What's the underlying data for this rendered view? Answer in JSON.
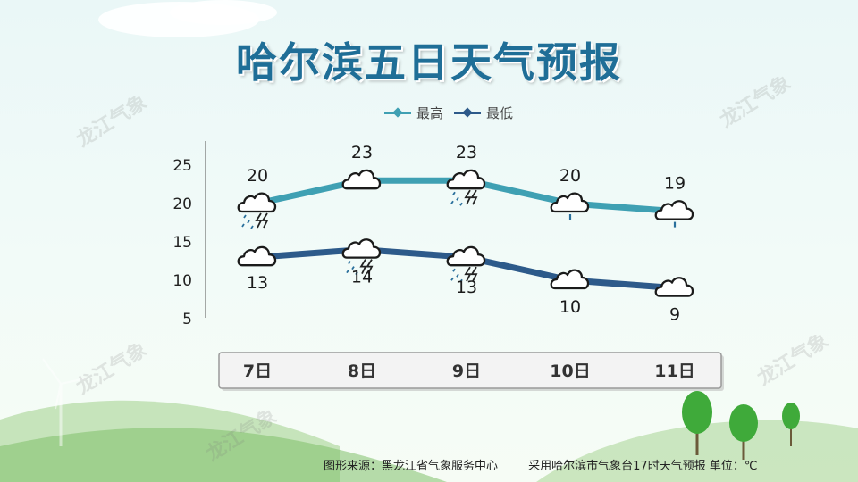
{
  "title": "哈尔滨五日天气预报",
  "watermark": "龙江气象",
  "footer": {
    "source": "图形来源：黑龙江省气象服务中心",
    "note": "采用哈尔滨市气象台17时天气预报 单位：℃"
  },
  "colors": {
    "title": "#1f6e97",
    "high_series": "#3fa0b3",
    "low_series": "#2d5a8a"
  },
  "chart_data": {
    "type": "line",
    "title": "",
    "xlabel": "",
    "ylabel": "",
    "categories": [
      "7日",
      "8日",
      "9日",
      "10日",
      "11日"
    ],
    "ylim": [
      5,
      25
    ],
    "yticks": [
      25,
      20,
      15,
      10,
      5
    ],
    "grid": false,
    "legend_position": "top",
    "series": [
      {
        "name": "最高",
        "values": [
          20,
          23,
          23,
          20,
          19
        ],
        "color": "#3fa0b3",
        "icons": [
          "thunder-shower-icon",
          "cloudy-icon",
          "thunder-shower-icon",
          "light-rain-icon",
          "light-rain-icon"
        ],
        "labels": [
          "20",
          "23",
          "23",
          "20",
          "19"
        ]
      },
      {
        "name": "最低",
        "values": [
          13,
          14,
          13,
          10,
          9
        ],
        "color": "#2d5a8a",
        "icons": [
          "cloudy-icon",
          "thunder-shower-icon",
          "thunder-shower-icon",
          "cloudy-icon",
          "cloudy-icon"
        ],
        "labels": [
          "13",
          "14",
          "13",
          "10",
          "9"
        ]
      }
    ]
  }
}
